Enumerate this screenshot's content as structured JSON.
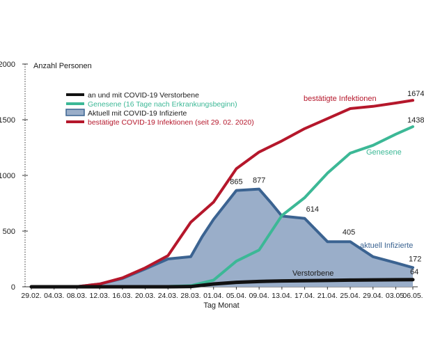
{
  "chart_data": {
    "type": "area",
    "ylabel": "Anzahl  Personen",
    "xlabel": "Tag Monat",
    "ylim": [
      0,
      2000
    ],
    "y_ticks": [
      0,
      500,
      1000,
      1500,
      2000
    ],
    "x_ticks": [
      "29.02.",
      "04.03.",
      "08.03.",
      "12.03.",
      "16.03.",
      "20.03.",
      "24.03.",
      "28.03.",
      "01.04.",
      "05.04.",
      "09.04.",
      "13.04.",
      "17.04.",
      "21.04.",
      "25.04.",
      "29.04.",
      "03.05.",
      "06.05."
    ],
    "x_tick_days": [
      0,
      4,
      8,
      12,
      16,
      20,
      24,
      28,
      32,
      36,
      40,
      44,
      48,
      52,
      56,
      60,
      64,
      67
    ],
    "legend": [
      {
        "key": "deaths",
        "label": "an und mit COVID-19 Verstorbene"
      },
      {
        "key": "recovered",
        "label": "Genesene (16 Tage nach Erkrankungsbeginn)"
      },
      {
        "key": "active",
        "label": "Aktuell mit COVID-19 Infizierte"
      },
      {
        "key": "confirmed",
        "label": "bestätigte COVID-19 Infektionen (seit 29. 02. 2020)"
      }
    ],
    "series": [
      {
        "key": "confirmed",
        "name": "bestätigte Infektionen",
        "color": "#b5172b",
        "x": [
          0,
          4,
          8,
          12,
          16,
          20,
          24,
          28,
          32,
          36,
          40,
          44,
          48,
          52,
          56,
          60,
          64,
          67
        ],
        "values": [
          0,
          0,
          2,
          25,
          80,
          170,
          280,
          580,
          760,
          1060,
          1210,
          1310,
          1420,
          1510,
          1600,
          1620,
          1650,
          1674
        ]
      },
      {
        "key": "recovered",
        "name": "Genesene",
        "color": "#3cb896",
        "x": [
          0,
          4,
          8,
          12,
          16,
          20,
          24,
          28,
          32,
          36,
          40,
          44,
          48,
          52,
          56,
          60,
          64,
          67
        ],
        "values": [
          0,
          0,
          0,
          0,
          0,
          0,
          3,
          10,
          60,
          230,
          330,
          640,
          800,
          1020,
          1200,
          1270,
          1370,
          1438
        ]
      },
      {
        "key": "active",
        "name": "aktuell Infizierte",
        "color": "#3b6391",
        "fill": "#9aaec9",
        "x": [
          0,
          4,
          8,
          12,
          16,
          20,
          24,
          28,
          30,
          32,
          36,
          40,
          42,
          44,
          48,
          52,
          56,
          60,
          64,
          67
        ],
        "values": [
          0,
          0,
          2,
          25,
          75,
          160,
          250,
          270,
          450,
          605,
          865,
          877,
          760,
          635,
          614,
          405,
          405,
          270,
          215,
          172
        ]
      },
      {
        "key": "deaths",
        "name": "Verstorbene",
        "color": "#111111",
        "x": [
          0,
          4,
          8,
          12,
          16,
          20,
          24,
          28,
          32,
          36,
          40,
          44,
          48,
          52,
          56,
          60,
          64,
          67
        ],
        "values": [
          0,
          0,
          0,
          0,
          0,
          0,
          0,
          2,
          25,
          40,
          48,
          52,
          55,
          57,
          60,
          62,
          63,
          64
        ]
      }
    ],
    "annotations": [
      {
        "text": "1674",
        "series": "confirmed",
        "x": 67
      },
      {
        "text": "1438",
        "series": "recovered",
        "x": 67
      },
      {
        "text": "865",
        "series": "active",
        "x": 36
      },
      {
        "text": "877",
        "series": "active",
        "x": 40
      },
      {
        "text": "614",
        "series": "active",
        "x": 48
      },
      {
        "text": "405",
        "series": "active",
        "x": 56
      },
      {
        "text": "172",
        "series": "active",
        "x": 67
      },
      {
        "text": "64",
        "series": "deaths",
        "x": 67
      }
    ],
    "series_labels": [
      {
        "text": "bestätigte Infektionen",
        "series": "confirmed"
      },
      {
        "text": "Genesene",
        "series": "recovered"
      },
      {
        "text": "aktuell Infizierte",
        "series": "active"
      },
      {
        "text": "Verstorbene",
        "series": "deaths"
      }
    ]
  }
}
